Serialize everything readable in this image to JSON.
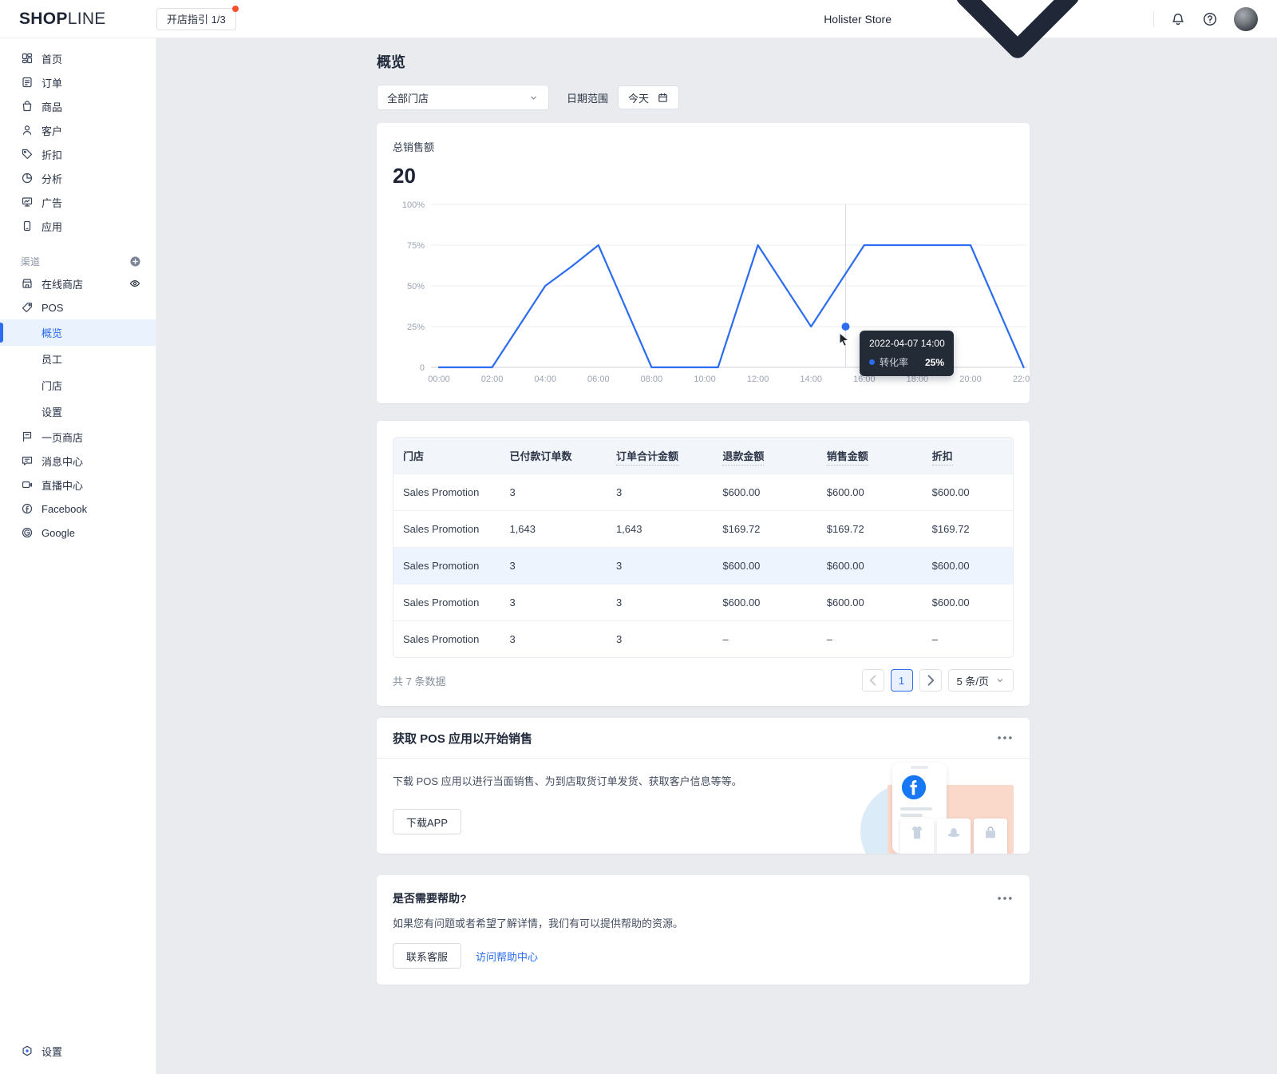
{
  "header": {
    "logo_part1": "SHOP",
    "logo_part2": "LINE",
    "guide_button": "开店指引 1/3",
    "store_name": "Holister Store"
  },
  "sidebar": {
    "main_items": [
      {
        "label": "首页",
        "icon": "home-icon",
        "name": "home"
      },
      {
        "label": "订单",
        "icon": "orders-icon",
        "name": "orders"
      },
      {
        "label": "商品",
        "icon": "products-icon",
        "name": "products"
      },
      {
        "label": "客户",
        "icon": "customers-icon",
        "name": "customers"
      },
      {
        "label": "折扣",
        "icon": "discount-icon",
        "name": "discounts"
      },
      {
        "label": "分析",
        "icon": "analytics-icon",
        "name": "analytics"
      },
      {
        "label": "广告",
        "icon": "ads-icon",
        "name": "ads"
      },
      {
        "label": "应用",
        "icon": "apps-icon",
        "name": "apps"
      }
    ],
    "channel_label": "渠道",
    "channel_items": [
      {
        "label": "在线商店",
        "icon": "online-store-icon",
        "name": "online-store",
        "trailing": "eye-icon"
      },
      {
        "label": "POS",
        "icon": "pos-icon",
        "name": "pos"
      }
    ],
    "pos_subitems": [
      {
        "label": "概览",
        "name": "pos-overview",
        "active": true
      },
      {
        "label": "员工",
        "name": "pos-staff"
      },
      {
        "label": "门店",
        "name": "pos-stores"
      },
      {
        "label": "设置",
        "name": "pos-settings"
      }
    ],
    "extra_items": [
      {
        "label": "一页商店",
        "icon": "one-page-store-icon",
        "name": "one-page-store"
      },
      {
        "label": "消息中心",
        "icon": "message-icon",
        "name": "message-center"
      },
      {
        "label": "直播中心",
        "icon": "live-icon",
        "name": "live-center"
      },
      {
        "label": "Facebook",
        "icon": "facebook-icon",
        "name": "facebook"
      },
      {
        "label": "Google",
        "icon": "google-icon",
        "name": "google"
      }
    ],
    "bottom_item": {
      "label": "设置",
      "icon": "settings-icon",
      "name": "settings"
    }
  },
  "page": {
    "title": "概览"
  },
  "filters": {
    "store_select": "全部门店",
    "date_label": "日期范围",
    "date_value": "今天"
  },
  "chart_card": {
    "metric_label": "总销售额",
    "metric_value": "20"
  },
  "chart_data": {
    "type": "line",
    "title": "总销售额",
    "metric_value": 20,
    "x_ticks": [
      "00:00",
      "02:00",
      "04:00",
      "06:00",
      "08:00",
      "10:00",
      "12:00",
      "14:00",
      "16:00",
      "18:00",
      "20:00",
      "22:00"
    ],
    "y_ticks": [
      "100%",
      "75%",
      "50%",
      "25%",
      "0"
    ],
    "y_tick_values": [
      100,
      75,
      50,
      25,
      0
    ],
    "ylim": [
      0,
      100
    ],
    "grid": true,
    "series": [
      {
        "name": "转化率",
        "color": "#2b6cf0",
        "points_hour_percent": [
          [
            0,
            0
          ],
          [
            2,
            0
          ],
          [
            4,
            50
          ],
          [
            5,
            62
          ],
          [
            6,
            75
          ],
          [
            8,
            0
          ],
          [
            10.5,
            0
          ],
          [
            12,
            75
          ],
          [
            14,
            25
          ],
          [
            16,
            75
          ],
          [
            20,
            75
          ],
          [
            22,
            0
          ]
        ]
      }
    ],
    "hover": {
      "x_hours": 15.3,
      "value": 25,
      "tooltip_title": "2022-04-07 14:00",
      "tooltip_series": "转化率",
      "tooltip_value": "25%"
    }
  },
  "table": {
    "columns": [
      {
        "label": "门店",
        "hint": false
      },
      {
        "label": "已付款订单数",
        "hint": false
      },
      {
        "label": "订单合计金额",
        "hint": true
      },
      {
        "label": "退款金额",
        "hint": true
      },
      {
        "label": "销售金额",
        "hint": true
      },
      {
        "label": "折扣",
        "hint": true
      }
    ],
    "rows": [
      [
        "Sales Promotion",
        "3",
        "3",
        "$600.00",
        "$600.00",
        "$600.00"
      ],
      [
        "Sales Promotion",
        "1,643",
        "1,643",
        "$169.72",
        "$169.72",
        "$169.72"
      ],
      [
        "Sales Promotion",
        "3",
        "3",
        "$600.00",
        "$600.00",
        "$600.00"
      ],
      [
        "Sales Promotion",
        "3",
        "3",
        "$600.00",
        "$600.00",
        "$600.00"
      ],
      [
        "Sales Promotion",
        "3",
        "3",
        "–",
        "–",
        "–"
      ]
    ],
    "highlighted_row_index": 2
  },
  "pagination": {
    "total_text": "共 7 条数据",
    "page": "1",
    "page_size": "5 条/页"
  },
  "pos_card": {
    "title": "获取 POS 应用以开始销售",
    "description": "下载 POS 应用以进行当面销售、为到店取货订单发货、获取客户信息等等。",
    "button": "下载APP"
  },
  "help_card": {
    "title": "是否需要帮助?",
    "description": "如果您有问题或者希望了解详情，我们有可以提供帮助的资源。",
    "button": "联系客服",
    "link": "访问帮助中心"
  },
  "colors": {
    "accent_blue": "#2b6cf0",
    "active_bg": "#eaf2fd",
    "main_bg": "#e9ebef",
    "tooltip_bg": "#232b36",
    "badge_red": "#f5512d",
    "table_header_bg": "#f2f6fa",
    "highlight_row_bg": "#edf4fd",
    "illustration_peach": "#fbd9ca",
    "illustration_blue": "#dcebf8",
    "facebook_blue": "#1877f2"
  }
}
